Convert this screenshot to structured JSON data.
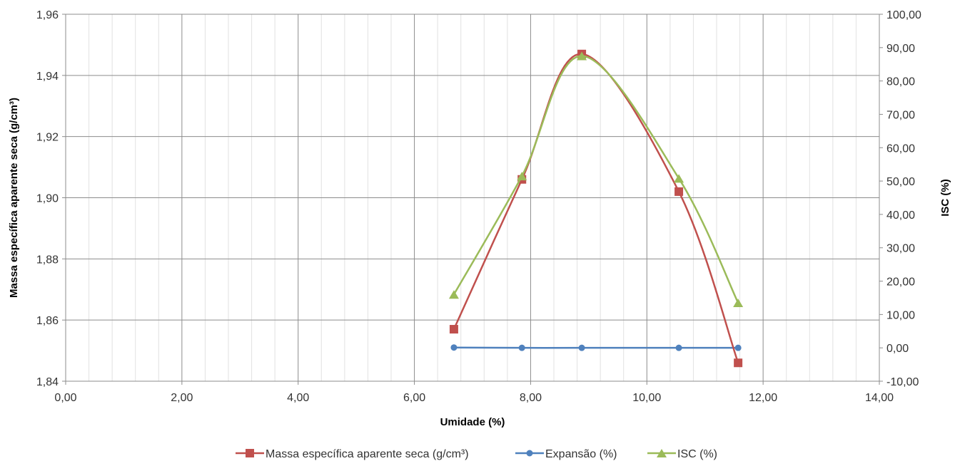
{
  "chart_data": {
    "type": "line",
    "title": "",
    "xlabel": "Umidade (%)",
    "ylabel": "Massa específica aparente seca (g/cm³)",
    "y2label": "ISC (%)",
    "xlim": [
      0,
      14
    ],
    "ylim": [
      1.84,
      1.96
    ],
    "y2lim": [
      -10,
      100
    ],
    "x_ticks": [
      "0,00",
      "2,00",
      "4,00",
      "6,00",
      "8,00",
      "10,00",
      "12,00",
      "14,00"
    ],
    "y_ticks": [
      "1,84",
      "1,86",
      "1,88",
      "1,90",
      "1,92",
      "1,94",
      "1,96"
    ],
    "y2_ticks": [
      "-10,00",
      "0,00",
      "10,00",
      "20,00",
      "30,00",
      "40,00",
      "50,00",
      "60,00",
      "70,00",
      "80,00",
      "90,00",
      "100,00"
    ],
    "grid": true,
    "legend_position": "bottom",
    "series": [
      {
        "name": "Massa específica aparente seca (g/cm³)",
        "axis": "left",
        "color": "#C0504D",
        "marker": "square",
        "x": [
          6.68,
          7.85,
          8.88,
          10.55,
          11.57
        ],
        "y": [
          1.857,
          1.906,
          1.947,
          1.902,
          1.846
        ]
      },
      {
        "name": "Expansão (%)",
        "axis": "right",
        "color": "#4F81BD",
        "marker": "circle",
        "x": [
          6.68,
          7.85,
          8.88,
          10.55,
          11.57
        ],
        "y": [
          0.1,
          0.0,
          0.0,
          0.0,
          0.0
        ]
      },
      {
        "name": "ISC (%)",
        "axis": "right",
        "color": "#9BBB59",
        "marker": "triangle",
        "x": [
          6.68,
          7.85,
          8.88,
          10.55,
          11.57
        ],
        "y": [
          16.0,
          51.5,
          87.5,
          50.8,
          13.5
        ]
      }
    ]
  }
}
